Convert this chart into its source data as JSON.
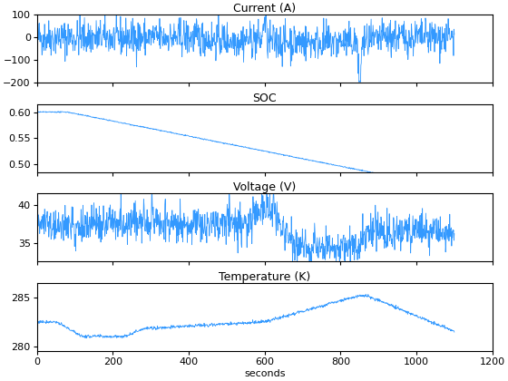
{
  "title1": "Current (A)",
  "title2": "SOC",
  "title3": "Voltage (V)",
  "title4": "Temperature (K)",
  "xlabel": "seconds",
  "line_color": "#3399FF",
  "line_width": 0.6,
  "xlim": [
    0,
    1200
  ],
  "current_ylim": [
    -200,
    100
  ],
  "current_yticks": [
    -200,
    -100,
    0,
    100
  ],
  "soc_ylim": [
    0.485,
    0.615
  ],
  "soc_yticks": [
    0.5,
    0.55,
    0.6
  ],
  "voltage_ylim": [
    32.5,
    41.5
  ],
  "voltage_yticks": [
    35,
    40
  ],
  "temp_ylim": [
    279.5,
    286.5
  ],
  "temp_yticks": [
    280,
    285
  ],
  "xticks": [
    0,
    200,
    400,
    600,
    800,
    1000,
    1200
  ],
  "n_points": 1100,
  "seed": 42
}
